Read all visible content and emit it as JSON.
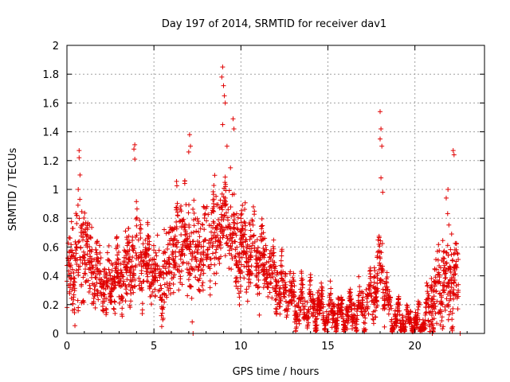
{
  "chart_data": {
    "type": "scatter",
    "title": "Day 197 of 2014, SRMTID for receiver dav1",
    "xlabel": "GPS time / hours",
    "ylabel": "SRMTID / TECUs",
    "xlim": [
      0,
      24
    ],
    "ylim": [
      0,
      2
    ],
    "grid": true,
    "marker": "plus",
    "color": "#e00000",
    "x_ticks": [
      "0",
      "5",
      "10",
      "15",
      "20"
    ],
    "y_ticks": [
      "0",
      "0.2",
      "0.4",
      "0.6",
      "0.8",
      "1",
      "1.2",
      "1.4",
      "1.6",
      "1.8",
      "2"
    ],
    "notable_points": [
      {
        "x": 0.7,
        "y": 1.27
      },
      {
        "x": 0.7,
        "y": 1.22
      },
      {
        "x": 0.75,
        "y": 1.1
      },
      {
        "x": 0.65,
        "y": 1.0
      },
      {
        "x": 3.9,
        "y": 1.31
      },
      {
        "x": 3.85,
        "y": 1.28
      },
      {
        "x": 3.9,
        "y": 1.21
      },
      {
        "x": 7.05,
        "y": 1.38
      },
      {
        "x": 7.1,
        "y": 1.3
      },
      {
        "x": 7.0,
        "y": 1.26
      },
      {
        "x": 8.95,
        "y": 1.85
      },
      {
        "x": 8.9,
        "y": 1.78
      },
      {
        "x": 9.0,
        "y": 1.72
      },
      {
        "x": 9.05,
        "y": 1.65
      },
      {
        "x": 9.1,
        "y": 1.6
      },
      {
        "x": 8.95,
        "y": 1.45
      },
      {
        "x": 9.2,
        "y": 1.3
      },
      {
        "x": 9.55,
        "y": 1.49
      },
      {
        "x": 9.6,
        "y": 1.42
      },
      {
        "x": 9.4,
        "y": 1.15
      },
      {
        "x": 18.0,
        "y": 1.54
      },
      {
        "x": 18.05,
        "y": 1.42
      },
      {
        "x": 18.0,
        "y": 1.35
      },
      {
        "x": 18.1,
        "y": 1.3
      },
      {
        "x": 18.05,
        "y": 1.08
      },
      {
        "x": 18.15,
        "y": 0.98
      },
      {
        "x": 22.2,
        "y": 1.27
      },
      {
        "x": 22.25,
        "y": 1.24
      },
      {
        "x": 21.9,
        "y": 1.0
      },
      {
        "x": 21.8,
        "y": 0.94
      },
      {
        "x": 7.2,
        "y": 0.08
      },
      {
        "x": 7.25,
        "y": 0.0
      },
      {
        "x": 21.0,
        "y": 0.0
      },
      {
        "x": 22.6,
        "y": 0.0
      }
    ],
    "envelope": {
      "description": "piecewise series level used to render the dense point cloud (x hours, y TECU)",
      "x": [
        0.0,
        0.5,
        0.8,
        1.5,
        2.0,
        2.5,
        3.0,
        3.5,
        4.0,
        4.5,
        5.0,
        5.5,
        6.0,
        6.5,
        7.0,
        7.5,
        8.0,
        8.5,
        9.0,
        9.5,
        10.0,
        10.5,
        11.0,
        11.5,
        12.0,
        12.5,
        13.0,
        13.5,
        14.0,
        14.5,
        15.0,
        15.5,
        16.0,
        16.5,
        17.0,
        17.5,
        18.0,
        18.3,
        18.6,
        19.0,
        19.5,
        20.0,
        20.5,
        21.0,
        21.5,
        22.0,
        22.5
      ],
      "center": [
        0.35,
        0.5,
        0.6,
        0.45,
        0.35,
        0.33,
        0.38,
        0.45,
        0.55,
        0.5,
        0.42,
        0.35,
        0.55,
        0.65,
        0.6,
        0.55,
        0.6,
        0.7,
        0.85,
        0.65,
        0.55,
        0.6,
        0.5,
        0.45,
        0.38,
        0.3,
        0.22,
        0.2,
        0.18,
        0.17,
        0.15,
        0.14,
        0.13,
        0.15,
        0.18,
        0.25,
        0.45,
        0.3,
        0.12,
        0.1,
        0.08,
        0.07,
        0.08,
        0.25,
        0.35,
        0.4,
        0.35
      ],
      "spread": [
        0.2,
        0.3,
        0.3,
        0.2,
        0.15,
        0.15,
        0.18,
        0.2,
        0.25,
        0.2,
        0.2,
        0.2,
        0.25,
        0.25,
        0.25,
        0.22,
        0.25,
        0.3,
        0.3,
        0.25,
        0.22,
        0.25,
        0.2,
        0.18,
        0.15,
        0.12,
        0.1,
        0.1,
        0.1,
        0.08,
        0.08,
        0.07,
        0.07,
        0.08,
        0.1,
        0.12,
        0.2,
        0.15,
        0.06,
        0.05,
        0.04,
        0.04,
        0.05,
        0.2,
        0.25,
        0.3,
        0.2
      ]
    }
  }
}
